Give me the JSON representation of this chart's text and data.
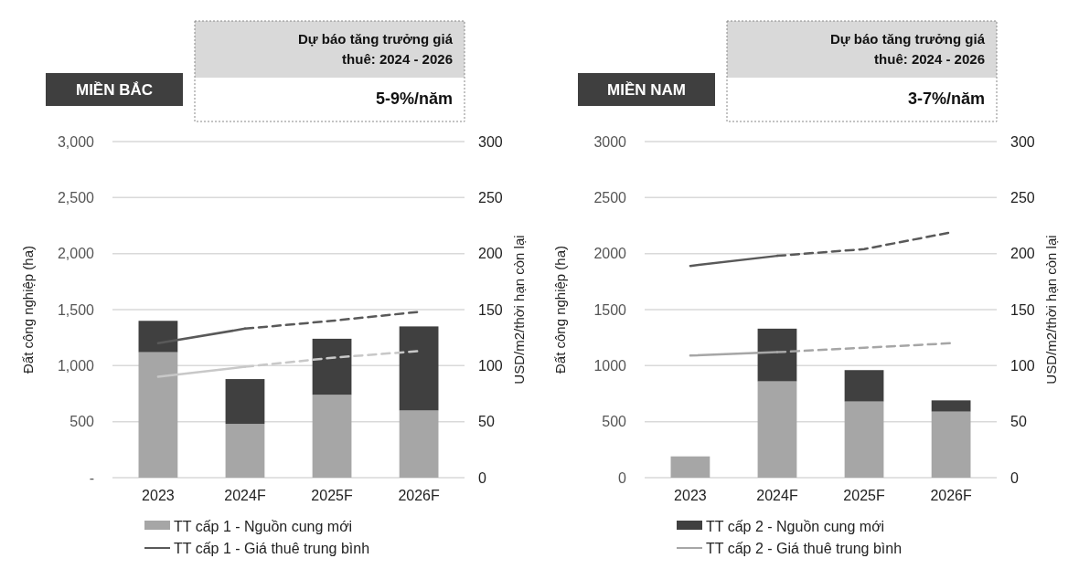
{
  "chart_data": [
    {
      "type": "bar",
      "title": "MIỀN BẮC",
      "annotations": [
        "Dự báo tăng trưởng giá thuê: 2024 - 2026",
        "5-9%/năm"
      ],
      "categories": [
        "2023",
        "2024F",
        "2025F",
        "2026F"
      ],
      "stacked": true,
      "ylabel": "Đất công nghiệp (ha)",
      "y2label": "USD/m2/thời hạn còn lại",
      "ylim": [
        0,
        3000
      ],
      "yticks": [
        {
          "value": 0,
          "label": "-"
        },
        500,
        {
          "value": 1000,
          "label": "1,000"
        },
        {
          "value": 1500,
          "label": "1,500"
        },
        {
          "value": 2000,
          "label": "2,000"
        },
        {
          "value": 2500,
          "label": "2,500"
        },
        {
          "value": 3000,
          "label": "3,000"
        }
      ],
      "y2lim": [
        0,
        300
      ],
      "y2ticks": [
        0,
        50,
        100,
        150,
        200,
        250,
        300
      ],
      "grid": "y",
      "legend": "bottom",
      "series": [
        {
          "name": "TT cấp 1 - Nguồn cung mới",
          "color": "#a6a6a6",
          "values": [
            1120,
            480,
            740,
            600
          ]
        },
        {
          "color": "#404040",
          "values": [
            280,
            400,
            500,
            750
          ]
        },
        {
          "type": "line",
          "axis": "y2",
          "name": "TT cấp 1 - Giá thuê trung bình",
          "color": "#595959",
          "line_style": "solid",
          "values": [
            120,
            133,
            null,
            null
          ]
        },
        {
          "type": "line",
          "axis": "y2",
          "color": "#595959",
          "line_style": "dashed",
          "values": [
            null,
            133,
            140,
            148
          ]
        },
        {
          "type": "line",
          "axis": "y2",
          "color": "#c8c8c8",
          "line_style": "solid",
          "values": [
            90,
            99,
            null,
            null
          ]
        },
        {
          "type": "line",
          "axis": "y2",
          "color": "#c8c8c8",
          "line_style": "dashed",
          "values": [
            null,
            99,
            107,
            113
          ]
        }
      ]
    },
    {
      "type": "bar",
      "title": "MIỀN NAM",
      "annotations": [
        "Dự báo tăng trưởng giá thuê: 2024 - 2026",
        "3-7%/năm"
      ],
      "categories": [
        "2023",
        "2024F",
        "2025F",
        "2026F"
      ],
      "stacked": true,
      "ylabel": "Đất công nghiệp (ha)",
      "y2label": "USD/m2/thời hạn còn lại",
      "ylim": [
        0,
        3000
      ],
      "yticks": [
        0,
        500,
        1000,
        1500,
        2000,
        2500,
        3000
      ],
      "y2lim": [
        0,
        300
      ],
      "y2ticks": [
        0,
        50,
        100,
        150,
        200,
        250,
        300
      ],
      "grid": "y",
      "legend": "bottom",
      "series": [
        {
          "color": "#a6a6a6",
          "values": [
            190,
            860,
            680,
            590
          ]
        },
        {
          "name": "TT cấp 2 - Nguồn cung mới",
          "color": "#404040",
          "values": [
            0,
            470,
            280,
            100
          ]
        },
        {
          "type": "line",
          "axis": "y2",
          "color": "#595959",
          "line_style": "solid",
          "values": [
            189,
            198,
            null,
            null
          ]
        },
        {
          "type": "line",
          "axis": "y2",
          "color": "#595959",
          "line_style": "dashed",
          "values": [
            null,
            198,
            204,
            219
          ]
        },
        {
          "type": "line",
          "axis": "y2",
          "name": "TT cấp 2 - Giá thuê trung bình",
          "color": "#a6a6a6",
          "line_style": "solid",
          "values": [
            109,
            112,
            null,
            null
          ]
        },
        {
          "type": "line",
          "axis": "y2",
          "color": "#a6a6a6",
          "line_style": "dashed",
          "values": [
            null,
            112,
            116,
            120
          ]
        }
      ]
    }
  ]
}
